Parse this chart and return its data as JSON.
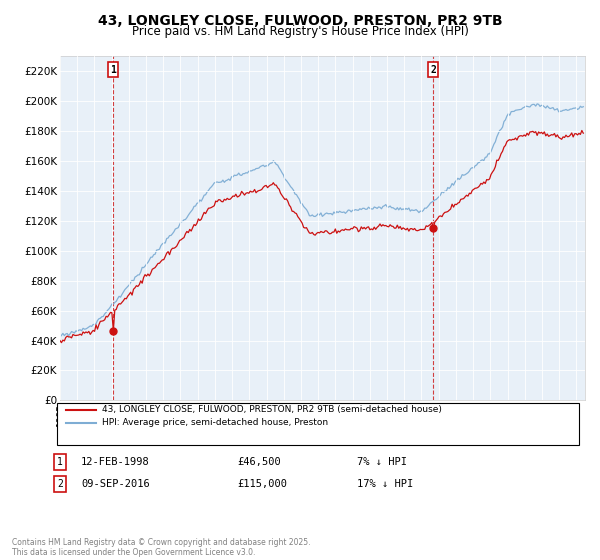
{
  "title": "43, LONGLEY CLOSE, FULWOOD, PRESTON, PR2 9TB",
  "subtitle": "Price paid vs. HM Land Registry's House Price Index (HPI)",
  "title_fontsize": 10,
  "subtitle_fontsize": 8.5,
  "ylim": [
    0,
    230000
  ],
  "yticks": [
    0,
    20000,
    40000,
    60000,
    80000,
    100000,
    120000,
    140000,
    160000,
    180000,
    200000,
    220000
  ],
  "ytick_labels": [
    "£0",
    "£20K",
    "£40K",
    "£60K",
    "£80K",
    "£100K",
    "£120K",
    "£140K",
    "£160K",
    "£180K",
    "£200K",
    "£220K"
  ],
  "hpi_color": "#7eadd4",
  "price_color": "#cc1111",
  "sale1_t": 1998.083,
  "sale1_price": 46500,
  "sale1_date": "12-FEB-1998",
  "sale1_pct": "7% ↓ HPI",
  "sale1_price_str": "£46,500",
  "sale2_t": 2016.667,
  "sale2_price": 115000,
  "sale2_date": "09-SEP-2016",
  "sale2_pct": "17% ↓ HPI",
  "sale2_price_str": "£115,000",
  "legend_label1": "43, LONGLEY CLOSE, FULWOOD, PRESTON, PR2 9TB (semi-detached house)",
  "legend_label2": "HPI: Average price, semi-detached house, Preston",
  "footer": "Contains HM Land Registry data © Crown copyright and database right 2025.\nThis data is licensed under the Open Government Licence v3.0.",
  "background_color": "#ffffff",
  "plot_bg_color": "#e8f0f8",
  "grid_color": "#ffffff",
  "xlim_start": 1995.0,
  "xlim_end": 2025.5
}
